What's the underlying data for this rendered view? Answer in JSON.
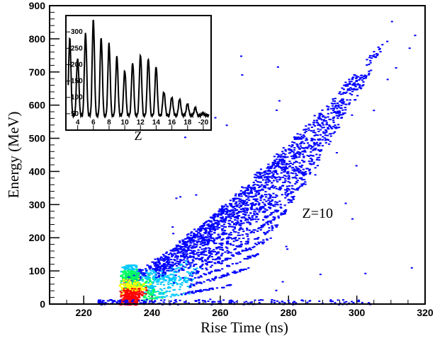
{
  "chart_data": [
    {
      "type": "heatmap",
      "title": "",
      "xlabel": "Rise Time (ns)",
      "ylabel": "Energy (MeV)",
      "xlim": [
        210,
        320
      ],
      "ylim": [
        0,
        900
      ],
      "xticks": [
        220,
        240,
        260,
        280,
        300,
        320
      ],
      "yticks": [
        0,
        100,
        200,
        300,
        400,
        500,
        600,
        700,
        800,
        900
      ],
      "annotation": {
        "text": "Z=10",
        "x": 284,
        "y": 290
      },
      "color_scale": [
        "#0000ff",
        "#00c8ff",
        "#00ff60",
        "#ffff00",
        "#ff0000"
      ],
      "band_count": 18,
      "band_start_risetime": 230,
      "band_end_risetime_range": [
        262,
        307
      ],
      "band_end_energy_range": [
        60,
        790
      ],
      "grid": false
    },
    {
      "type": "line",
      "title": "",
      "xlabel": "Z",
      "ylabel": "",
      "xlim": [
        2.5,
        21
      ],
      "ylim": [
        0,
        350
      ],
      "xticks": [
        "4",
        "6",
        "8",
        "10",
        "12",
        "14",
        "16",
        "18",
        "-20"
      ],
      "yticks": [
        "50",
        "100",
        "150",
        "200",
        "250",
        "300"
      ],
      "peaks": [
        {
          "z": 3,
          "counts": 280
        },
        {
          "z": 4,
          "counts": 215
        },
        {
          "z": 5,
          "counts": 295
        },
        {
          "z": 6,
          "counts": 338
        },
        {
          "z": 7,
          "counts": 280
        },
        {
          "z": 8,
          "counts": 265
        },
        {
          "z": 9,
          "counts": 225
        },
        {
          "z": 10,
          "counts": 180
        },
        {
          "z": 11,
          "counts": 205
        },
        {
          "z": 12,
          "counts": 230
        },
        {
          "z": 13,
          "counts": 218
        },
        {
          "z": 14,
          "counts": 195
        },
        {
          "z": 15,
          "counts": 115
        },
        {
          "z": 16,
          "counts": 100
        },
        {
          "z": 17,
          "counts": 95
        },
        {
          "z": 18,
          "counts": 80
        },
        {
          "z": 19,
          "counts": 68
        },
        {
          "z": 20,
          "counts": 50
        }
      ],
      "valley_counts": 45,
      "grid": false
    }
  ]
}
